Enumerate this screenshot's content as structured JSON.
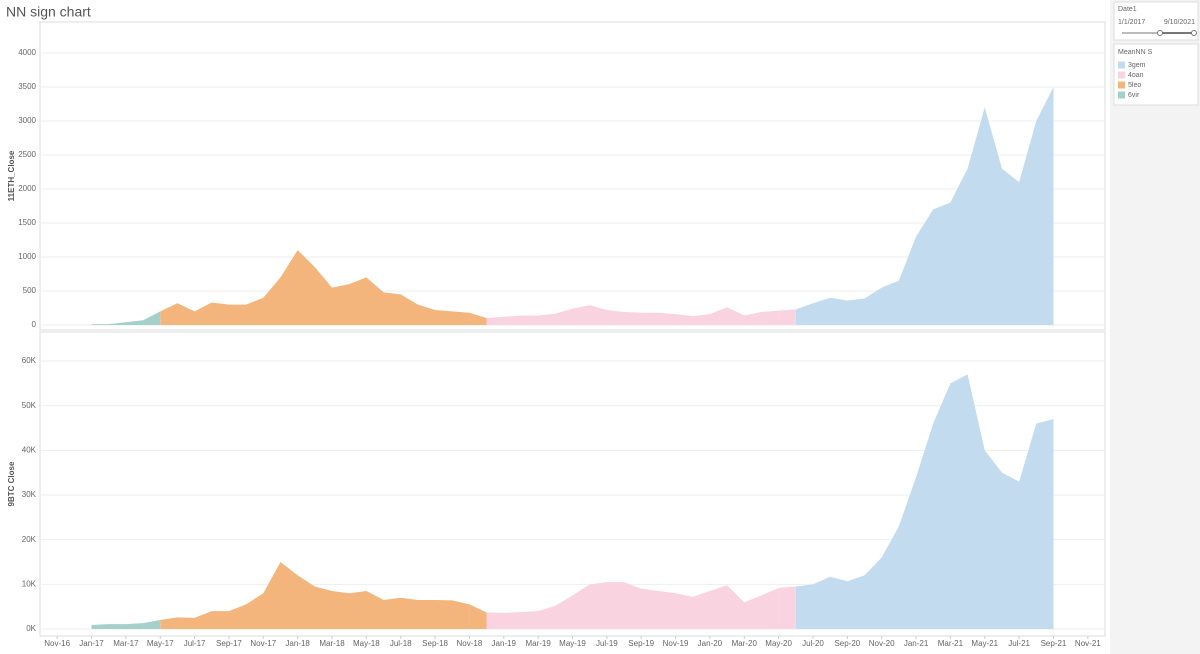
{
  "title": "NN sign chart",
  "filter": {
    "title": "Date1",
    "start": "1/1/2017",
    "end": "9/10/2021"
  },
  "legend": {
    "title": "MeanNN S"
  },
  "chart_data": [
    {
      "type": "area",
      "ylabel": "11ETH_Close",
      "x": [
        "2017-01",
        "2017-02",
        "2017-03",
        "2017-04",
        "2017-05",
        "2017-06",
        "2017-07",
        "2017-08",
        "2017-09",
        "2017-10",
        "2017-11",
        "2017-12",
        "2018-01",
        "2018-02",
        "2018-03",
        "2018-04",
        "2018-05",
        "2018-06",
        "2018-07",
        "2018-08",
        "2018-09",
        "2018-10",
        "2018-11",
        "2018-12",
        "2019-01",
        "2019-02",
        "2019-03",
        "2019-04",
        "2019-05",
        "2019-06",
        "2019-07",
        "2019-08",
        "2019-09",
        "2019-10",
        "2019-11",
        "2019-12",
        "2020-01",
        "2020-02",
        "2020-03",
        "2020-04",
        "2020-05",
        "2020-06",
        "2020-07",
        "2020-08",
        "2020-09",
        "2020-10",
        "2020-11",
        "2020-12",
        "2021-01",
        "2021-02",
        "2021-03",
        "2021-04",
        "2021-05",
        "2021-06",
        "2021-07",
        "2021-08",
        "2021-09"
      ],
      "xlim": [
        "2016-10",
        "2021-12"
      ],
      "ylim": [
        -74,
        4455
      ],
      "yticks": [
        0,
        500,
        1000,
        1500,
        2000,
        2500,
        3000,
        3500,
        4000
      ],
      "grid": true,
      "series": [
        {
          "name": "3gem",
          "color": "#c3dbee",
          "values": [
            null,
            null,
            null,
            null,
            null,
            null,
            null,
            null,
            null,
            null,
            null,
            null,
            null,
            null,
            null,
            null,
            null,
            null,
            null,
            null,
            null,
            null,
            null,
            null,
            null,
            null,
            null,
            null,
            null,
            null,
            null,
            null,
            null,
            null,
            null,
            null,
            null,
            null,
            null,
            null,
            null,
            230,
            320,
            400,
            360,
            390,
            550,
            650,
            1300,
            1700,
            1800,
            2300,
            3200,
            2300,
            2100,
            3000,
            3500
          ]
        },
        {
          "name": "4oan",
          "color": "#f9d3df",
          "values": [
            null,
            null,
            null,
            null,
            null,
            null,
            null,
            null,
            null,
            null,
            null,
            null,
            null,
            null,
            null,
            null,
            null,
            null,
            null,
            null,
            null,
            null,
            null,
            100,
            120,
            140,
            140,
            165,
            240,
            290,
            220,
            190,
            180,
            180,
            160,
            130,
            160,
            260,
            140,
            190,
            210,
            null,
            null,
            null,
            null,
            null,
            null,
            null,
            null,
            null,
            null,
            null,
            null,
            null,
            null,
            null,
            null
          ]
        },
        {
          "name": "5leo",
          "color": "#f3b57b",
          "values": [
            null,
            null,
            null,
            null,
            200,
            320,
            200,
            330,
            300,
            300,
            400,
            700,
            1100,
            850,
            550,
            600,
            700,
            480,
            450,
            300,
            220,
            200,
            180,
            null,
            null,
            null,
            null,
            null,
            null,
            null,
            null,
            null,
            null,
            null,
            null,
            null,
            null,
            null,
            null,
            null,
            null,
            null,
            null,
            null,
            null,
            null,
            null,
            null,
            null,
            null,
            null,
            null,
            null,
            null,
            null,
            null,
            null
          ]
        },
        {
          "name": "6vir",
          "color": "#a5cfcb",
          "values": [
            10,
            13,
            40,
            70,
            null,
            null,
            null,
            null,
            null,
            null,
            null,
            null,
            null,
            null,
            null,
            null,
            null,
            null,
            null,
            null,
            null,
            null,
            null,
            null,
            null,
            null,
            null,
            null,
            null,
            null,
            null,
            null,
            null,
            null,
            null,
            null,
            null,
            null,
            null,
            null,
            null,
            null,
            null,
            null,
            null,
            null,
            null,
            null,
            null,
            null,
            null,
            null,
            null,
            null,
            null,
            null,
            null
          ]
        }
      ]
    },
    {
      "type": "area",
      "ylabel": "9BTC Close",
      "x": [
        "2017-01",
        "2017-02",
        "2017-03",
        "2017-04",
        "2017-05",
        "2017-06",
        "2017-07",
        "2017-08",
        "2017-09",
        "2017-10",
        "2017-11",
        "2017-12",
        "2018-01",
        "2018-02",
        "2018-03",
        "2018-04",
        "2018-05",
        "2018-06",
        "2018-07",
        "2018-08",
        "2018-09",
        "2018-10",
        "2018-11",
        "2018-12",
        "2019-01",
        "2019-02",
        "2019-03",
        "2019-04",
        "2019-05",
        "2019-06",
        "2019-07",
        "2019-08",
        "2019-09",
        "2019-10",
        "2019-11",
        "2019-12",
        "2020-01",
        "2020-02",
        "2020-03",
        "2020-04",
        "2020-05",
        "2020-06",
        "2020-07",
        "2020-08",
        "2020-09",
        "2020-10",
        "2020-11",
        "2020-12",
        "2021-01",
        "2021-02",
        "2021-03",
        "2021-04",
        "2021-05",
        "2021-06",
        "2021-07",
        "2021-08",
        "2021-09"
      ],
      "xlim": [
        "2016-10",
        "2021-12"
      ],
      "xticks": [
        {
          "value": "2016-11",
          "label": "Nov-16"
        },
        {
          "value": "2017-01",
          "label": "Jan-17"
        },
        {
          "value": "2017-03",
          "label": "Mar-17"
        },
        {
          "value": "2017-05",
          "label": "May-17"
        },
        {
          "value": "2017-07",
          "label": "Jul-17"
        },
        {
          "value": "2017-09",
          "label": "Sep-17"
        },
        {
          "value": "2017-11",
          "label": "Nov-17"
        },
        {
          "value": "2018-01",
          "label": "Jan-18"
        },
        {
          "value": "2018-03",
          "label": "Mar-18"
        },
        {
          "value": "2018-05",
          "label": "May-18"
        },
        {
          "value": "2018-07",
          "label": "Jul-18"
        },
        {
          "value": "2018-09",
          "label": "Sep-18"
        },
        {
          "value": "2018-11",
          "label": "Nov-18"
        },
        {
          "value": "2019-01",
          "label": "Jan-19"
        },
        {
          "value": "2019-03",
          "label": "Mar-19"
        },
        {
          "value": "2019-05",
          "label": "May-19"
        },
        {
          "value": "2019-07",
          "label": "Jul-19"
        },
        {
          "value": "2019-09",
          "label": "Sep-19"
        },
        {
          "value": "2019-11",
          "label": "Nov-19"
        },
        {
          "value": "2020-01",
          "label": "Jan-20"
        },
        {
          "value": "2020-03",
          "label": "Mar-20"
        },
        {
          "value": "2020-05",
          "label": "May-20"
        },
        {
          "value": "2020-07",
          "label": "Jul-20"
        },
        {
          "value": "2020-09",
          "label": "Sep-20"
        },
        {
          "value": "2020-11",
          "label": "Nov-20"
        },
        {
          "value": "2021-01",
          "label": "Jan-21"
        },
        {
          "value": "2021-03",
          "label": "Mar-21"
        },
        {
          "value": "2021-05",
          "label": "May-21"
        },
        {
          "value": "2021-07",
          "label": "Jul-21"
        },
        {
          "value": "2021-09",
          "label": "Sep-21"
        },
        {
          "value": "2021-11",
          "label": "Nov-21"
        }
      ],
      "ylim": [
        -1570,
        66500
      ],
      "yticks": [
        {
          "value": 0,
          "label": "0K"
        },
        {
          "value": 10000,
          "label": "10K"
        },
        {
          "value": 20000,
          "label": "20K"
        },
        {
          "value": 30000,
          "label": "30K"
        },
        {
          "value": 40000,
          "label": "40K"
        },
        {
          "value": 50000,
          "label": "50K"
        },
        {
          "value": 60000,
          "label": "60K"
        }
      ],
      "grid": true,
      "series": [
        {
          "name": "3gem",
          "color": "#c3dbee",
          "values": [
            null,
            null,
            null,
            null,
            null,
            null,
            null,
            null,
            null,
            null,
            null,
            null,
            null,
            null,
            null,
            null,
            null,
            null,
            null,
            null,
            null,
            null,
            null,
            null,
            null,
            null,
            null,
            null,
            null,
            null,
            null,
            null,
            null,
            null,
            null,
            null,
            null,
            null,
            null,
            null,
            null,
            9500,
            10000,
            11700,
            10700,
            12000,
            16000,
            23000,
            34000,
            46000,
            55000,
            57000,
            40000,
            35000,
            33000,
            46000,
            47000
          ]
        },
        {
          "name": "4oan",
          "color": "#f9d3df",
          "values": [
            null,
            null,
            null,
            null,
            null,
            null,
            null,
            null,
            null,
            null,
            null,
            null,
            null,
            null,
            null,
            null,
            null,
            null,
            null,
            null,
            null,
            null,
            null,
            3700,
            3600,
            3800,
            4000,
            5200,
            7500,
            10000,
            10500,
            10500,
            9000,
            8500,
            8000,
            7200,
            8500,
            9800,
            6000,
            7500,
            9200,
            null,
            null,
            null,
            null,
            null,
            null,
            null,
            null,
            null,
            null,
            null,
            null,
            null,
            null,
            null,
            null
          ]
        },
        {
          "name": "5leo",
          "color": "#f3b57b",
          "values": [
            null,
            null,
            null,
            null,
            2000,
            2600,
            2500,
            4000,
            4000,
            5500,
            8000,
            15000,
            12000,
            9500,
            8500,
            8000,
            8500,
            6500,
            7000,
            6500,
            6500,
            6400,
            5500,
            null,
            null,
            null,
            null,
            null,
            null,
            null,
            null,
            null,
            null,
            null,
            null,
            null,
            null,
            null,
            null,
            null,
            null,
            null,
            null,
            null,
            null,
            null,
            null,
            null,
            null,
            null,
            null,
            null,
            null,
            null,
            null,
            null,
            null
          ]
        },
        {
          "name": "6vir",
          "color": "#a5cfcb",
          "values": [
            900,
            1100,
            1100,
            1300,
            null,
            null,
            null,
            null,
            null,
            null,
            null,
            null,
            null,
            null,
            null,
            null,
            null,
            null,
            null,
            null,
            null,
            null,
            null,
            null,
            null,
            null,
            null,
            null,
            null,
            null,
            null,
            null,
            null,
            null,
            null,
            null,
            null,
            null,
            null,
            null,
            null,
            null,
            null,
            null,
            null,
            null,
            null,
            null,
            null,
            null,
            null,
            null,
            null,
            null,
            null,
            null,
            null
          ]
        }
      ]
    }
  ]
}
